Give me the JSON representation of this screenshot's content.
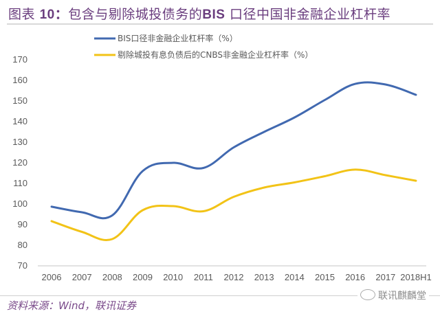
{
  "title": {
    "prefix": "图表",
    "number": "10：",
    "text_before": "包含与剔除城投债务的",
    "bold_abbr": "BIS",
    "text_after": " 口径中国非金融企业杠杆率"
  },
  "chart_data": {
    "type": "line",
    "title": "图表 10：包含与剔除城投债务的 BIS 口径中国非金融企业杠杆率",
    "xlabel": "",
    "ylabel": "",
    "categories": [
      "2006",
      "2007",
      "2008",
      "2009",
      "2010",
      "2011",
      "2012",
      "2013",
      "2014",
      "2015",
      "2016",
      "2017",
      "2018H1"
    ],
    "ylim": [
      70,
      170
    ],
    "yticks": [
      70,
      80,
      90,
      100,
      110,
      120,
      130,
      140,
      150,
      160,
      170
    ],
    "grid": false,
    "legend_position": "top-left",
    "smooth": true,
    "series": [
      {
        "name": "BIS口径非金融企业杠杆率（%）",
        "color": "#4169b0",
        "values": [
          98.7,
          96.0,
          94.5,
          116.0,
          120.0,
          117.5,
          127.5,
          135.0,
          142.0,
          150.5,
          158.3,
          158.0,
          153.0
        ]
      },
      {
        "name": "剔除城投有息负债后的CNBS非金融企业杠杆率（%）",
        "color": "#f2c317",
        "values": [
          91.7,
          86.5,
          83.0,
          97.0,
          99.0,
          96.5,
          103.5,
          108.0,
          110.5,
          113.5,
          116.7,
          114.0,
          111.3
        ]
      }
    ]
  },
  "footer": {
    "source_label": "资料来源：",
    "source_wind": "Wind",
    "source_rest": "，联讯证券",
    "watermark": "联讯麒麟堂"
  }
}
